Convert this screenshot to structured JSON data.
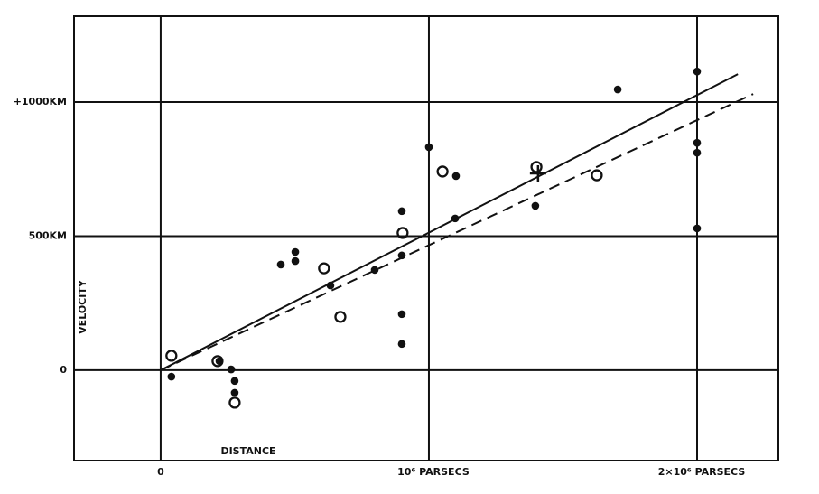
{
  "chart_data": {
    "type": "scatter",
    "x_label": "DISTANCE",
    "y_label": "VELOCITY",
    "xlim": [
      -323000,
      2303000
    ],
    "ylim": [
      -337,
      1320
    ],
    "xticks": [
      0,
      {
        "value": 1000000,
        "label": "10⁶ PARSECS"
      },
      {
        "value": 2000000,
        "label": "2×10⁶ PARSECS"
      }
    ],
    "yticks": [
      0,
      {
        "value": 500,
        "label": "500KM"
      },
      {
        "value": 1000,
        "label": "+1000KM"
      }
    ],
    "grid": true,
    "series": [
      {
        "marker": "filled",
        "color": "#111111",
        "x": [
          40000,
          219000,
          263000,
          276000,
          276000,
          448000,
          502000,
          502000,
          633000,
          798000,
          899000,
          899000,
          899000,
          899000,
          1000000,
          1101000,
          1098000,
          1397000,
          1704000,
          2000000,
          2000000,
          2000000,
          2000000
        ],
        "values": [
          -24,
          34,
          3,
          -40,
          -84,
          394,
          441,
          407,
          316,
          374,
          593,
          428,
          209,
          98,
          832,
          724,
          566,
          613,
          1047,
          1114,
          848,
          811,
          529
        ]
      },
      {
        "marker": "open",
        "color": "#111111",
        "x": [
          40000,
          212000,
          276000,
          609000,
          670000,
          902000,
          1051000,
          1401000,
          1626000
        ],
        "values": [
          54,
          34,
          -121,
          380,
          199,
          512,
          741,
          758,
          727
        ]
      },
      {
        "marker": "cross",
        "color": "#111111",
        "x": [
          1407000
        ],
        "values": [
          734
        ]
      },
      {
        "marker": "line",
        "line_style": "solid",
        "color": "#111111",
        "x": [
          0,
          2152000
        ],
        "values": [
          0,
          1104
        ]
      },
      {
        "marker": "line",
        "line_style": "dashed",
        "color": "#111111",
        "x": [
          0,
          2209000
        ],
        "values": [
          0,
          1030
        ]
      }
    ]
  }
}
